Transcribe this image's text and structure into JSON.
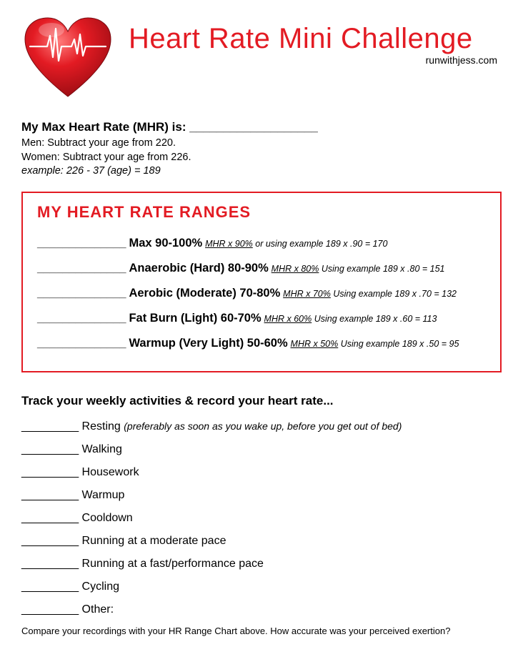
{
  "header": {
    "title": "Heart Rate Mini Challenge",
    "subtitle": "runwithjess.com",
    "title_color": "#e31b23"
  },
  "mhr": {
    "label": "My Max Heart Rate (MHR) is: ___________________",
    "help_men": "Men: Subtract your age from 220.",
    "help_women": "Women: Subtract your age from 226.",
    "example": "example: 226 - 37 (age) = 189"
  },
  "ranges": {
    "title": "MY HEART RATE RANGES",
    "border_color": "#e31b23",
    "title_color": "#e31b23",
    "rows": [
      {
        "blank": "______________",
        "label": "Max 90-100%",
        "formula": "MHR x 90%",
        "connector": " or using example ",
        "example": "189 x .90 = 170"
      },
      {
        "blank": "______________",
        "label": "Anaerobic (Hard) 80-90%",
        "formula": "MHR x 80%",
        "connector": "  Using example ",
        "example": "189 x .80 = 151"
      },
      {
        "blank": "______________",
        "label": "Aerobic (Moderate) 70-80%",
        "formula": "MHR x 70%",
        "connector": "  Using example ",
        "example": "189 x .70 = 132"
      },
      {
        "blank": "______________",
        "label": "Fat Burn (Light) 60-70%",
        "formula": "MHR x 60%",
        "connector": "  Using example ",
        "example": "189 x .60 = 113"
      },
      {
        "blank": "______________",
        "label": "Warmup (Very Light) 50-60%",
        "formula": "MHR x 50%",
        "connector": "  Using example ",
        "example": "189 x .50 = 95"
      }
    ]
  },
  "track": {
    "title": "Track your weekly activities & record your heart rate...",
    "blank": "_________",
    "activities": [
      {
        "label": "Resting",
        "note": "(preferably as soon as you wake up, before you get out of bed)"
      },
      {
        "label": "Walking",
        "note": ""
      },
      {
        "label": "Housework",
        "note": ""
      },
      {
        "label": "Warmup",
        "note": ""
      },
      {
        "label": "Cooldown",
        "note": ""
      },
      {
        "label": "Running at a moderate pace",
        "note": ""
      },
      {
        "label": "Running at a fast/performance pace",
        "note": ""
      },
      {
        "label": "Cycling",
        "note": ""
      },
      {
        "label": "Other:",
        "note": ""
      }
    ],
    "footer": "Compare your recordings with your HR Range Chart above. How accurate was your perceived exertion?"
  }
}
